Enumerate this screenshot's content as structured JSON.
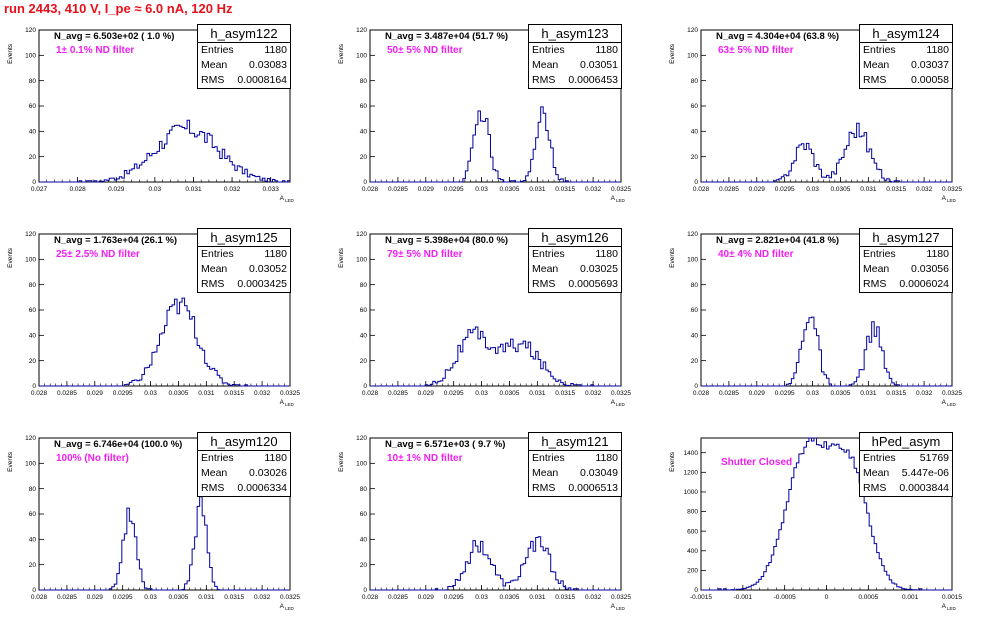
{
  "header": {
    "title": "run 2443,   410 V, I_pe ≈ 6.0 nA, 120 Hz"
  },
  "colors": {
    "title": "#e8111b",
    "annotation": "#f020f0",
    "histogram": "#0000a0"
  },
  "stat_labels": {
    "entries": "Entries",
    "mean": "Mean",
    "rms": "RMS"
  },
  "y_axis_label": "Events",
  "x_axis_label": "A",
  "x_axis_sub": "LED",
  "panels": [
    {
      "name": "h_asym122",
      "navg": "N_avg = 6.503e+02 ( 1.0 %)",
      "filter": "1± 0.1% ND filter",
      "entries": "1180",
      "mean": "0.03083",
      "rms": "0.0008164",
      "xticks": [
        "0.027",
        "0.028",
        "0.029",
        "0.03",
        "0.031",
        "0.032",
        "0.033"
      ],
      "yticks": [
        "0",
        "20",
        "40",
        "60",
        "80",
        "100",
        "120"
      ]
    },
    {
      "name": "h_asym123",
      "navg": "N_avg = 3.487e+04 (51.7 %)",
      "filter": "50± 5% ND filter",
      "entries": "1180",
      "mean": "0.03051",
      "rms": "0.0006453",
      "xticks": [
        "0.028",
        "0.0285",
        "0.029",
        "0.0295",
        "0.03",
        "0.0305",
        "0.031",
        "0.0315",
        "0.032",
        "0.0325"
      ],
      "yticks": [
        "0",
        "20",
        "40",
        "60",
        "80",
        "100",
        "120"
      ]
    },
    {
      "name": "h_asym124",
      "navg": "N_avg = 4.304e+04 (63.8 %)",
      "filter": "63± 5% ND filter",
      "entries": "1180",
      "mean": "0.03037",
      "rms": "0.00058",
      "xticks": [
        "0.028",
        "0.0285",
        "0.029",
        "0.0295",
        "0.03",
        "0.0305",
        "0.031",
        "0.0315",
        "0.032",
        "0.0325"
      ],
      "yticks": [
        "0",
        "20",
        "40",
        "60",
        "80",
        "100",
        "120"
      ]
    },
    {
      "name": "h_asym125",
      "navg": "N_avg = 1.763e+04 (26.1 %)",
      "filter": "25± 2.5% ND filter",
      "entries": "1180",
      "mean": "0.03052",
      "rms": "0.0003425",
      "xticks": [
        "0.028",
        "0.0285",
        "0.029",
        "0.0295",
        "0.03",
        "0.0305",
        "0.031",
        "0.0315",
        "0.032",
        "0.0325"
      ],
      "yticks": [
        "0",
        "20",
        "40",
        "60",
        "80",
        "100",
        "120"
      ]
    },
    {
      "name": "h_asym126",
      "navg": "N_avg = 5.398e+04 (80.0 %)",
      "filter": "79± 5% ND filter",
      "entries": "1180",
      "mean": "0.03025",
      "rms": "0.0005693",
      "xticks": [
        "0.028",
        "0.0285",
        "0.029",
        "0.0295",
        "0.03",
        "0.0305",
        "0.031",
        "0.0315",
        "0.032",
        "0.0325"
      ],
      "yticks": [
        "0",
        "20",
        "40",
        "60",
        "80",
        "100",
        "120"
      ]
    },
    {
      "name": "h_asym127",
      "navg": "N_avg = 2.821e+04 (41.8 %)",
      "filter": "40± 4% ND filter",
      "entries": "1180",
      "mean": "0.03056",
      "rms": "0.0006024",
      "xticks": [
        "0.028",
        "0.0285",
        "0.029",
        "0.0295",
        "0.03",
        "0.0305",
        "0.031",
        "0.0315",
        "0.032",
        "0.0325"
      ],
      "yticks": [
        "0",
        "20",
        "40",
        "60",
        "80",
        "100",
        "120"
      ]
    },
    {
      "name": "h_asym120",
      "navg": "N_avg = 6.746e+04 (100.0 %)",
      "filter": "100% (No filter)",
      "entries": "1180",
      "mean": "0.03026",
      "rms": "0.0006334",
      "xticks": [
        "0.028",
        "0.0285",
        "0.029",
        "0.0295",
        "0.03",
        "0.0305",
        "0.031",
        "0.0315",
        "0.032",
        "0.0325"
      ],
      "yticks": [
        "0",
        "20",
        "40",
        "60",
        "80",
        "100",
        "120"
      ]
    },
    {
      "name": "h_asym121",
      "navg": "N_avg = 6.571e+03 ( 9.7 %)",
      "filter": "10± 1% ND filter",
      "entries": "1180",
      "mean": "0.03049",
      "rms": "0.0006513",
      "xticks": [
        "0.028",
        "0.0285",
        "0.029",
        "0.0295",
        "0.03",
        "0.0305",
        "0.031",
        "0.0315",
        "0.032",
        "0.0325"
      ],
      "yticks": [
        "0",
        "20",
        "40",
        "60",
        "80",
        "100",
        "120"
      ]
    },
    {
      "name": "hPed_asym",
      "navg": "",
      "filter": "Shutter Closed",
      "entries": "51769",
      "mean": "5.447e-06",
      "rms": "0.0003844",
      "xticks": [
        "-0.0015",
        "-0.001",
        "-0.0005",
        "0",
        "0.0005",
        "0.001",
        "0.0015"
      ],
      "yticks": [
        "0",
        "200",
        "400",
        "600",
        "800",
        "1000",
        "1200",
        "1400"
      ]
    }
  ],
  "chart_data": [
    {
      "type": "histogram",
      "title": "h_asym122",
      "xlabel": "A_LED",
      "ylabel": "Events",
      "xlim": [
        0.027,
        0.0335
      ],
      "ylim": [
        0,
        120
      ],
      "peaks": [
        {
          "center": 0.03083,
          "sigma": 0.0008164,
          "height": 42
        }
      ]
    },
    {
      "type": "histogram",
      "title": "h_asym123",
      "xlabel": "A_LED",
      "ylabel": "Events",
      "xlim": [
        0.028,
        0.0325
      ],
      "ylim": [
        0,
        120
      ],
      "peaks": [
        {
          "center": 0.03,
          "sigma": 0.00013,
          "height": 56
        },
        {
          "center": 0.0311,
          "sigma": 0.00013,
          "height": 56
        }
      ]
    },
    {
      "type": "histogram",
      "title": "h_asym124",
      "xlabel": "A_LED",
      "ylabel": "Events",
      "xlim": [
        0.028,
        0.0325
      ],
      "ylim": [
        0,
        120
      ],
      "peaks": [
        {
          "center": 0.02985,
          "sigma": 0.00018,
          "height": 30
        },
        {
          "center": 0.0308,
          "sigma": 0.00022,
          "height": 42
        }
      ]
    },
    {
      "type": "histogram",
      "title": "h_asym125",
      "xlabel": "A_LED",
      "ylabel": "Events",
      "xlim": [
        0.028,
        0.0325
      ],
      "ylim": [
        0,
        120
      ],
      "peaks": [
        {
          "center": 0.03052,
          "sigma": 0.00033,
          "height": 64
        }
      ]
    },
    {
      "type": "histogram",
      "title": "h_asym126",
      "xlabel": "A_LED",
      "ylabel": "Events",
      "xlim": [
        0.028,
        0.0325
      ],
      "ylim": [
        0,
        120
      ],
      "peaks": [
        {
          "center": 0.02985,
          "sigma": 0.0003,
          "height": 38
        },
        {
          "center": 0.0307,
          "sigma": 0.00035,
          "height": 32
        }
      ]
    },
    {
      "type": "histogram",
      "title": "h_asym127",
      "xlabel": "A_LED",
      "ylabel": "Events",
      "xlim": [
        0.028,
        0.0325
      ],
      "ylim": [
        0,
        120
      ],
      "peaks": [
        {
          "center": 0.02995,
          "sigma": 0.00014,
          "height": 58
        },
        {
          "center": 0.0311,
          "sigma": 0.00014,
          "height": 46
        }
      ]
    },
    {
      "type": "histogram",
      "title": "h_asym120",
      "xlabel": "A_LED",
      "ylabel": "Events",
      "xlim": [
        0.028,
        0.0325
      ],
      "ylim": [
        0,
        120
      ],
      "peaks": [
        {
          "center": 0.02963,
          "sigma": 0.00011,
          "height": 63
        },
        {
          "center": 0.0309,
          "sigma": 0.00011,
          "height": 66
        }
      ]
    },
    {
      "type": "histogram",
      "title": "h_asym121",
      "xlabel": "A_LED",
      "ylabel": "Events",
      "xlim": [
        0.028,
        0.0325
      ],
      "ylim": [
        0,
        120
      ],
      "peaks": [
        {
          "center": 0.02995,
          "sigma": 0.00022,
          "height": 36
        },
        {
          "center": 0.031,
          "sigma": 0.00022,
          "height": 38
        }
      ]
    },
    {
      "type": "histogram",
      "title": "hPed_asym",
      "xlabel": "A_LED",
      "ylabel": "Events",
      "xlim": [
        -0.0015,
        0.0015
      ],
      "ylim": [
        0,
        1550
      ],
      "peaks": [
        {
          "center": -0.00023,
          "sigma": 0.00025,
          "height": 1420
        },
        {
          "center": 0.00028,
          "sigma": 0.00022,
          "height": 1210
        }
      ]
    }
  ]
}
